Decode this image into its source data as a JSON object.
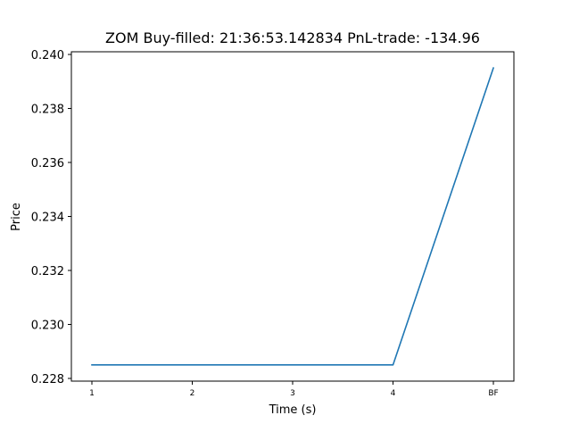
{
  "chart_data": {
    "type": "line",
    "title": "ZOM  Buy-filled:  21:36:53.142834  PnL-trade:  -134.96",
    "xlabel": "Time (s)",
    "ylabel": "Price",
    "categories": [
      "1",
      "2",
      "3",
      "4",
      "BF"
    ],
    "series": [
      {
        "name": "Price",
        "color": "#1f77b4",
        "values": [
          0.2285,
          0.2285,
          0.2285,
          0.2285,
          0.2395
        ]
      }
    ],
    "ylim": [
      0.2279,
      0.2401
    ],
    "yticks": [
      0.228,
      0.23,
      0.232,
      0.234,
      0.236,
      0.238,
      0.24
    ],
    "ytick_labels": [
      "0.228",
      "0.230",
      "0.232",
      "0.234",
      "0.236",
      "0.238",
      "0.240"
    ],
    "grid": false
  }
}
